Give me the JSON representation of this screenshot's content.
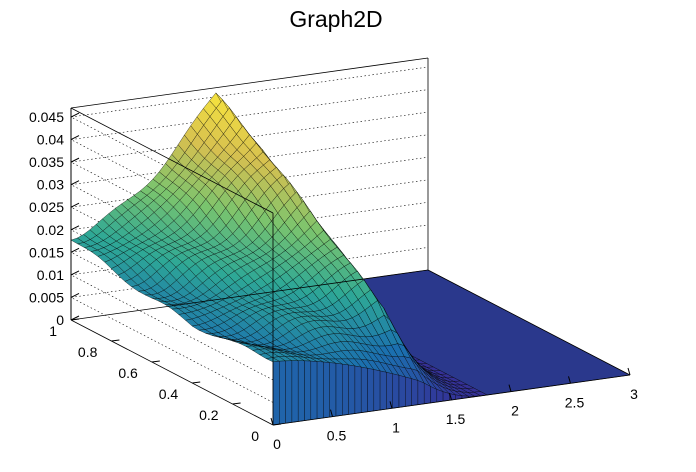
{
  "chart_data": {
    "type": "surface",
    "title": "Graph2D",
    "xlabel": "",
    "ylabel": "",
    "zlabel": "",
    "xlim": [
      0,
      3
    ],
    "ylim": [
      0,
      1
    ],
    "zlim": [
      0,
      0.047
    ],
    "x_ticks": [
      "0",
      "0.5",
      "1",
      "1.5",
      "2",
      "2.5",
      "3"
    ],
    "y_ticks": [
      "0",
      "0.2",
      "0.4",
      "0.6",
      "0.8",
      "1"
    ],
    "z_ticks": [
      "0",
      "0.005",
      "0.01",
      "0.015",
      "0.02",
      "0.025",
      "0.03",
      "0.035",
      "0.04",
      "0.045"
    ],
    "grid": true,
    "colormap": "viridis-like (dark blue to yellow)",
    "x_range_surface": [
      0,
      1.8
    ],
    "drop_x": 1.25,
    "profile_along_y": {
      "x0_flat_edge": [
        0.014,
        0.013,
        0.013,
        0.0145,
        0.0165,
        0.0185
      ],
      "x_1_25_ridge": [
        0.005,
        0.018,
        0.026,
        0.033,
        0.041,
        0.047
      ]
    },
    "region_x_gt_1_8": 0
  }
}
